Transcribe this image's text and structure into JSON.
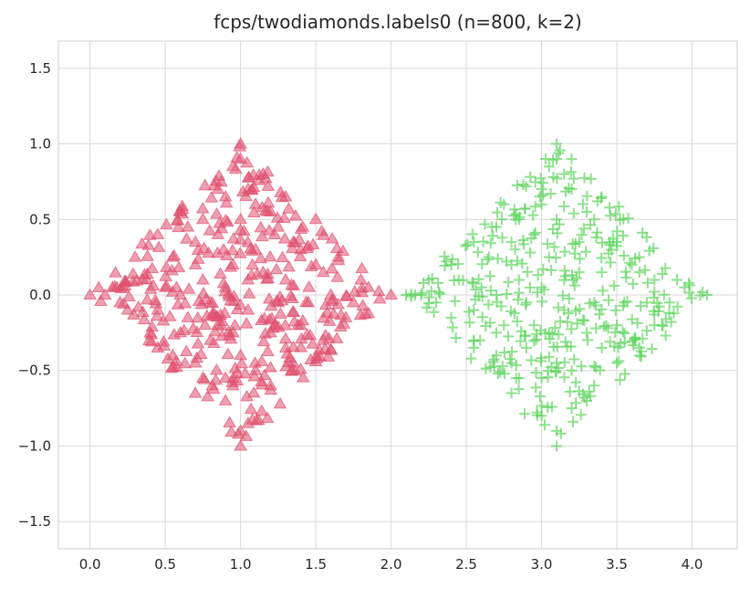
{
  "chart_data": {
    "type": "scatter",
    "title": "fcps/twodiamonds.labels0 (n=800, k=2)",
    "xlabel": "",
    "ylabel": "",
    "xlim": [
      -0.21,
      4.3
    ],
    "ylim": [
      -1.68,
      1.68
    ],
    "xticks": [
      0.0,
      0.5,
      1.0,
      1.5,
      2.0,
      2.5,
      3.0,
      3.5,
      4.0
    ],
    "xtick_labels": [
      "0.0",
      "0.5",
      "1.0",
      "1.5",
      "2.0",
      "2.5",
      "3.0",
      "3.5",
      "4.0"
    ],
    "yticks": [
      -1.5,
      -1.0,
      -0.5,
      0.0,
      0.5,
      1.0,
      1.5
    ],
    "ytick_labels": [
      "−1.5",
      "−1.0",
      "−0.5",
      "0.0",
      "0.5",
      "1.0",
      "1.5"
    ],
    "grid": true,
    "legend": "none",
    "series": [
      {
        "marker": "triangle",
        "color": "#e0506f",
        "center": [
          1.0,
          0.0
        ],
        "half_width": 1.0,
        "points": [
          [
            0.0,
            0.0
          ],
          [
            1.0,
            1.0
          ],
          [
            1.0,
            -1.0
          ],
          [
            2.0,
            0.0
          ],
          [
            0.6,
            0.0
          ],
          [
            0.75,
            0.5
          ],
          [
            0.85,
            0.7
          ],
          [
            1.1,
            0.6
          ],
          [
            1.25,
            0.45
          ],
          [
            1.4,
            0.3
          ],
          [
            1.5,
            0.5
          ],
          [
            1.65,
            0.25
          ],
          [
            1.8,
            0.1
          ],
          [
            1.7,
            -0.15
          ],
          [
            1.55,
            -0.3
          ],
          [
            1.35,
            -0.45
          ],
          [
            1.2,
            -0.6
          ],
          [
            1.05,
            -0.85
          ],
          [
            0.9,
            -0.7
          ],
          [
            0.75,
            -0.55
          ],
          [
            0.55,
            -0.4
          ],
          [
            0.4,
            -0.25
          ],
          [
            0.25,
            -0.1
          ],
          [
            0.15,
            0.05
          ],
          [
            0.3,
            0.25
          ],
          [
            0.45,
            0.4
          ],
          [
            0.6,
            0.55
          ],
          [
            0.95,
            0.85
          ],
          [
            1.15,
            0.8
          ],
          [
            0.85,
            0.4
          ],
          [
            0.95,
            0.2
          ],
          [
            1.1,
            0.3
          ],
          [
            1.3,
            0.1
          ],
          [
            1.45,
            -0.05
          ],
          [
            1.2,
            -0.25
          ],
          [
            1.0,
            -0.4
          ],
          [
            0.8,
            -0.3
          ],
          [
            0.65,
            -0.15
          ],
          [
            0.5,
            0.05
          ],
          [
            0.7,
            0.2
          ],
          [
            0.9,
            0.05
          ],
          [
            1.05,
            -0.1
          ],
          [
            0.95,
            -0.25
          ],
          [
            1.25,
            -0.05
          ],
          [
            1.15,
            0.15
          ],
          [
            0.8,
            -0.05
          ],
          [
            0.6,
            -0.25
          ],
          [
            0.45,
            -0.1
          ],
          [
            0.35,
            0.1
          ],
          [
            0.55,
            0.25
          ],
          [
            0.7,
            0.35
          ],
          [
            1.0,
            0.5
          ],
          [
            1.2,
            0.55
          ],
          [
            1.35,
            0.35
          ],
          [
            1.5,
            0.2
          ],
          [
            1.6,
            0.0
          ],
          [
            1.4,
            -0.2
          ],
          [
            1.3,
            -0.35
          ],
          [
            1.1,
            -0.5
          ],
          [
            0.9,
            -0.55
          ],
          [
            0.7,
            -0.45
          ],
          [
            0.85,
            -0.2
          ],
          [
            1.05,
            0.1
          ],
          [
            0.75,
            0.1
          ],
          [
            0.65,
            0.45
          ],
          [
            0.9,
            0.65
          ],
          [
            1.05,
            0.7
          ],
          [
            0.2,
            -0.05
          ],
          [
            1.85,
            0.05
          ],
          [
            1.75,
            -0.05
          ],
          [
            0.1,
            0.0
          ],
          [
            1.0,
            0.9
          ],
          [
            1.0,
            -0.9
          ],
          [
            1.3,
            0.65
          ],
          [
            0.7,
            -0.65
          ],
          [
            1.55,
            0.15
          ],
          [
            0.45,
            -0.35
          ]
        ]
      },
      {
        "marker": "plus",
        "color": "#5ed45e",
        "center": [
          3.1,
          0.0
        ],
        "half_width": 1.0,
        "points": [
          [
            2.1,
            0.0
          ],
          [
            3.1,
            1.0
          ],
          [
            3.1,
            -1.0
          ],
          [
            4.1,
            0.0
          ],
          [
            2.7,
            0.0
          ],
          [
            2.85,
            0.5
          ],
          [
            3.0,
            0.6
          ],
          [
            3.2,
            0.7
          ],
          [
            3.35,
            0.5
          ],
          [
            3.5,
            0.35
          ],
          [
            3.6,
            0.2
          ],
          [
            3.75,
            0.1
          ],
          [
            3.9,
            0.1
          ],
          [
            3.8,
            -0.2
          ],
          [
            3.65,
            -0.35
          ],
          [
            3.5,
            -0.45
          ],
          [
            3.35,
            -0.6
          ],
          [
            3.2,
            -0.75
          ],
          [
            3.0,
            -0.8
          ],
          [
            2.85,
            -0.55
          ],
          [
            2.7,
            -0.4
          ],
          [
            2.55,
            -0.3
          ],
          [
            2.4,
            -0.15
          ],
          [
            2.25,
            0.1
          ],
          [
            2.4,
            0.2
          ],
          [
            2.55,
            0.35
          ],
          [
            2.7,
            0.45
          ],
          [
            3.05,
            0.85
          ],
          [
            3.2,
            0.9
          ],
          [
            2.95,
            0.4
          ],
          [
            3.05,
            0.25
          ],
          [
            3.25,
            0.35
          ],
          [
            3.4,
            0.15
          ],
          [
            3.55,
            -0.05
          ],
          [
            3.3,
            -0.25
          ],
          [
            3.1,
            -0.45
          ],
          [
            2.9,
            -0.35
          ],
          [
            2.75,
            -0.2
          ],
          [
            2.6,
            0.05
          ],
          [
            2.8,
            0.2
          ],
          [
            3.0,
            0.05
          ],
          [
            3.15,
            -0.1
          ],
          [
            3.05,
            -0.25
          ],
          [
            3.35,
            -0.05
          ],
          [
            3.25,
            0.15
          ],
          [
            2.9,
            -0.05
          ],
          [
            2.7,
            -0.25
          ],
          [
            2.55,
            -0.1
          ],
          [
            2.45,
            0.1
          ],
          [
            2.65,
            0.25
          ],
          [
            2.8,
            0.35
          ],
          [
            3.1,
            0.5
          ],
          [
            3.3,
            0.55
          ],
          [
            3.45,
            0.35
          ],
          [
            3.65,
            0.15
          ],
          [
            3.7,
            -0.05
          ],
          [
            3.5,
            -0.2
          ],
          [
            3.4,
            -0.35
          ],
          [
            3.2,
            -0.5
          ],
          [
            3.0,
            -0.55
          ],
          [
            2.8,
            -0.45
          ],
          [
            2.95,
            -0.2
          ],
          [
            3.15,
            0.1
          ],
          [
            2.85,
            0.1
          ],
          [
            2.75,
            0.6
          ],
          [
            3.0,
            0.7
          ],
          [
            3.15,
            0.8
          ],
          [
            2.3,
            -0.05
          ],
          [
            3.95,
            0.05
          ],
          [
            3.85,
            -0.05
          ],
          [
            2.2,
            0.0
          ],
          [
            3.1,
            0.9
          ],
          [
            3.1,
            -0.9
          ],
          [
            3.4,
            0.65
          ],
          [
            2.8,
            -0.65
          ],
          [
            3.65,
            0.25
          ],
          [
            2.55,
            -0.35
          ],
          [
            3.3,
            -0.7
          ],
          [
            3.75,
            -0.2
          ]
        ]
      }
    ]
  }
}
